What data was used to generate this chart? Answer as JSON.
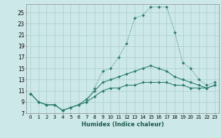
{
  "xlabel": "Humidex (Indice chaleur)",
  "background_color": "#cde8e8",
  "grid_color": "#a8cccc",
  "line_color": "#2e7d6e",
  "xlim": [
    -0.5,
    23.5
  ],
  "ylim": [
    7,
    26.5
  ],
  "yticks": [
    7,
    9,
    11,
    13,
    15,
    17,
    19,
    21,
    23,
    25
  ],
  "xticks": [
    0,
    1,
    2,
    3,
    4,
    5,
    6,
    7,
    8,
    9,
    10,
    11,
    12,
    13,
    14,
    15,
    16,
    17,
    18,
    19,
    20,
    21,
    22,
    23
  ],
  "series": [
    {
      "x": [
        0,
        1,
        2,
        3,
        4,
        5,
        6,
        7,
        8,
        9,
        10,
        11,
        12,
        13,
        14,
        15,
        16,
        17,
        18,
        19,
        20,
        21,
        22,
        23
      ],
      "y": [
        10.5,
        9.0,
        8.5,
        8.5,
        7.5,
        8.0,
        8.5,
        9.0,
        11.5,
        14.5,
        15.0,
        17.0,
        19.5,
        24.0,
        24.5,
        26.0,
        26.0,
        26.0,
        21.5,
        16.0,
        15.0,
        13.0,
        12.0,
        12.5
      ],
      "linestyle": "dotted"
    },
    {
      "x": [
        0,
        1,
        2,
        3,
        4,
        5,
        6,
        7,
        8,
        9,
        10,
        11,
        12,
        13,
        14,
        15,
        16,
        17,
        18,
        19,
        20,
        21,
        22,
        23
      ],
      "y": [
        10.5,
        9.0,
        8.5,
        8.5,
        7.5,
        8.0,
        8.5,
        9.5,
        11.0,
        12.5,
        13.0,
        13.5,
        14.0,
        14.5,
        15.0,
        15.5,
        15.0,
        14.5,
        13.5,
        13.0,
        12.5,
        12.0,
        11.5,
        12.0
      ],
      "linestyle": "solid"
    },
    {
      "x": [
        0,
        1,
        2,
        3,
        4,
        5,
        6,
        7,
        8,
        9,
        10,
        11,
        12,
        13,
        14,
        15,
        16,
        17,
        18,
        19,
        20,
        21,
        22,
        23
      ],
      "y": [
        10.5,
        9.0,
        8.5,
        8.5,
        7.5,
        8.0,
        8.5,
        9.0,
        10.0,
        11.0,
        11.5,
        11.5,
        12.0,
        12.0,
        12.5,
        12.5,
        12.5,
        12.5,
        12.0,
        12.0,
        11.5,
        11.5,
        11.5,
        12.0
      ],
      "linestyle": "solid"
    }
  ]
}
